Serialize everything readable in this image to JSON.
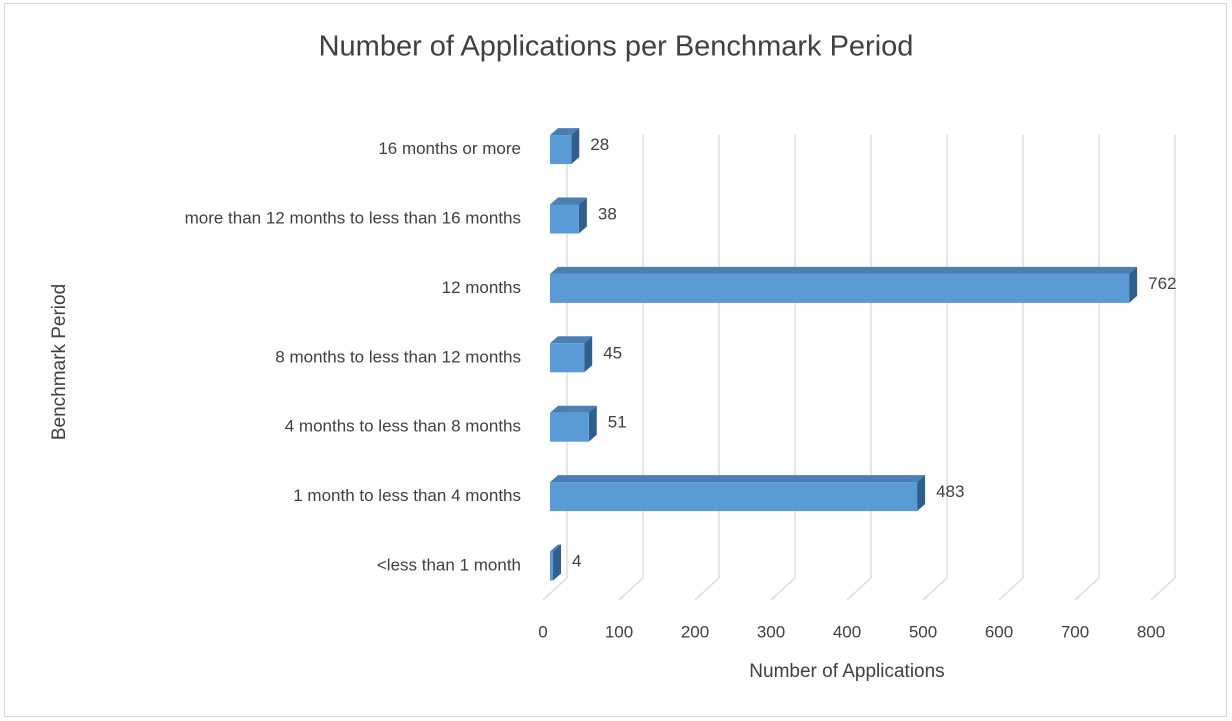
{
  "chart_data": {
    "type": "bar3d_horizontal",
    "title": "Number of Applications per Benchmark Period",
    "x_axis_label": "Number of Applications",
    "y_axis_label": "Benchmark Period",
    "categories": [
      "<less than 1 month",
      "1 month to less than 4 months",
      "4 months to less than 8 months",
      "8 months to less than 12 months",
      "12 months",
      "more than 12 months to less than 16 months",
      "16 months or more"
    ],
    "values": [
      4,
      483,
      51,
      45,
      762,
      38,
      28
    ],
    "color": "#5b9bd5",
    "xlim": [
      0,
      800
    ],
    "xticks": [
      0,
      100,
      200,
      300,
      400,
      500,
      600,
      700,
      800
    ],
    "grid": true
  }
}
